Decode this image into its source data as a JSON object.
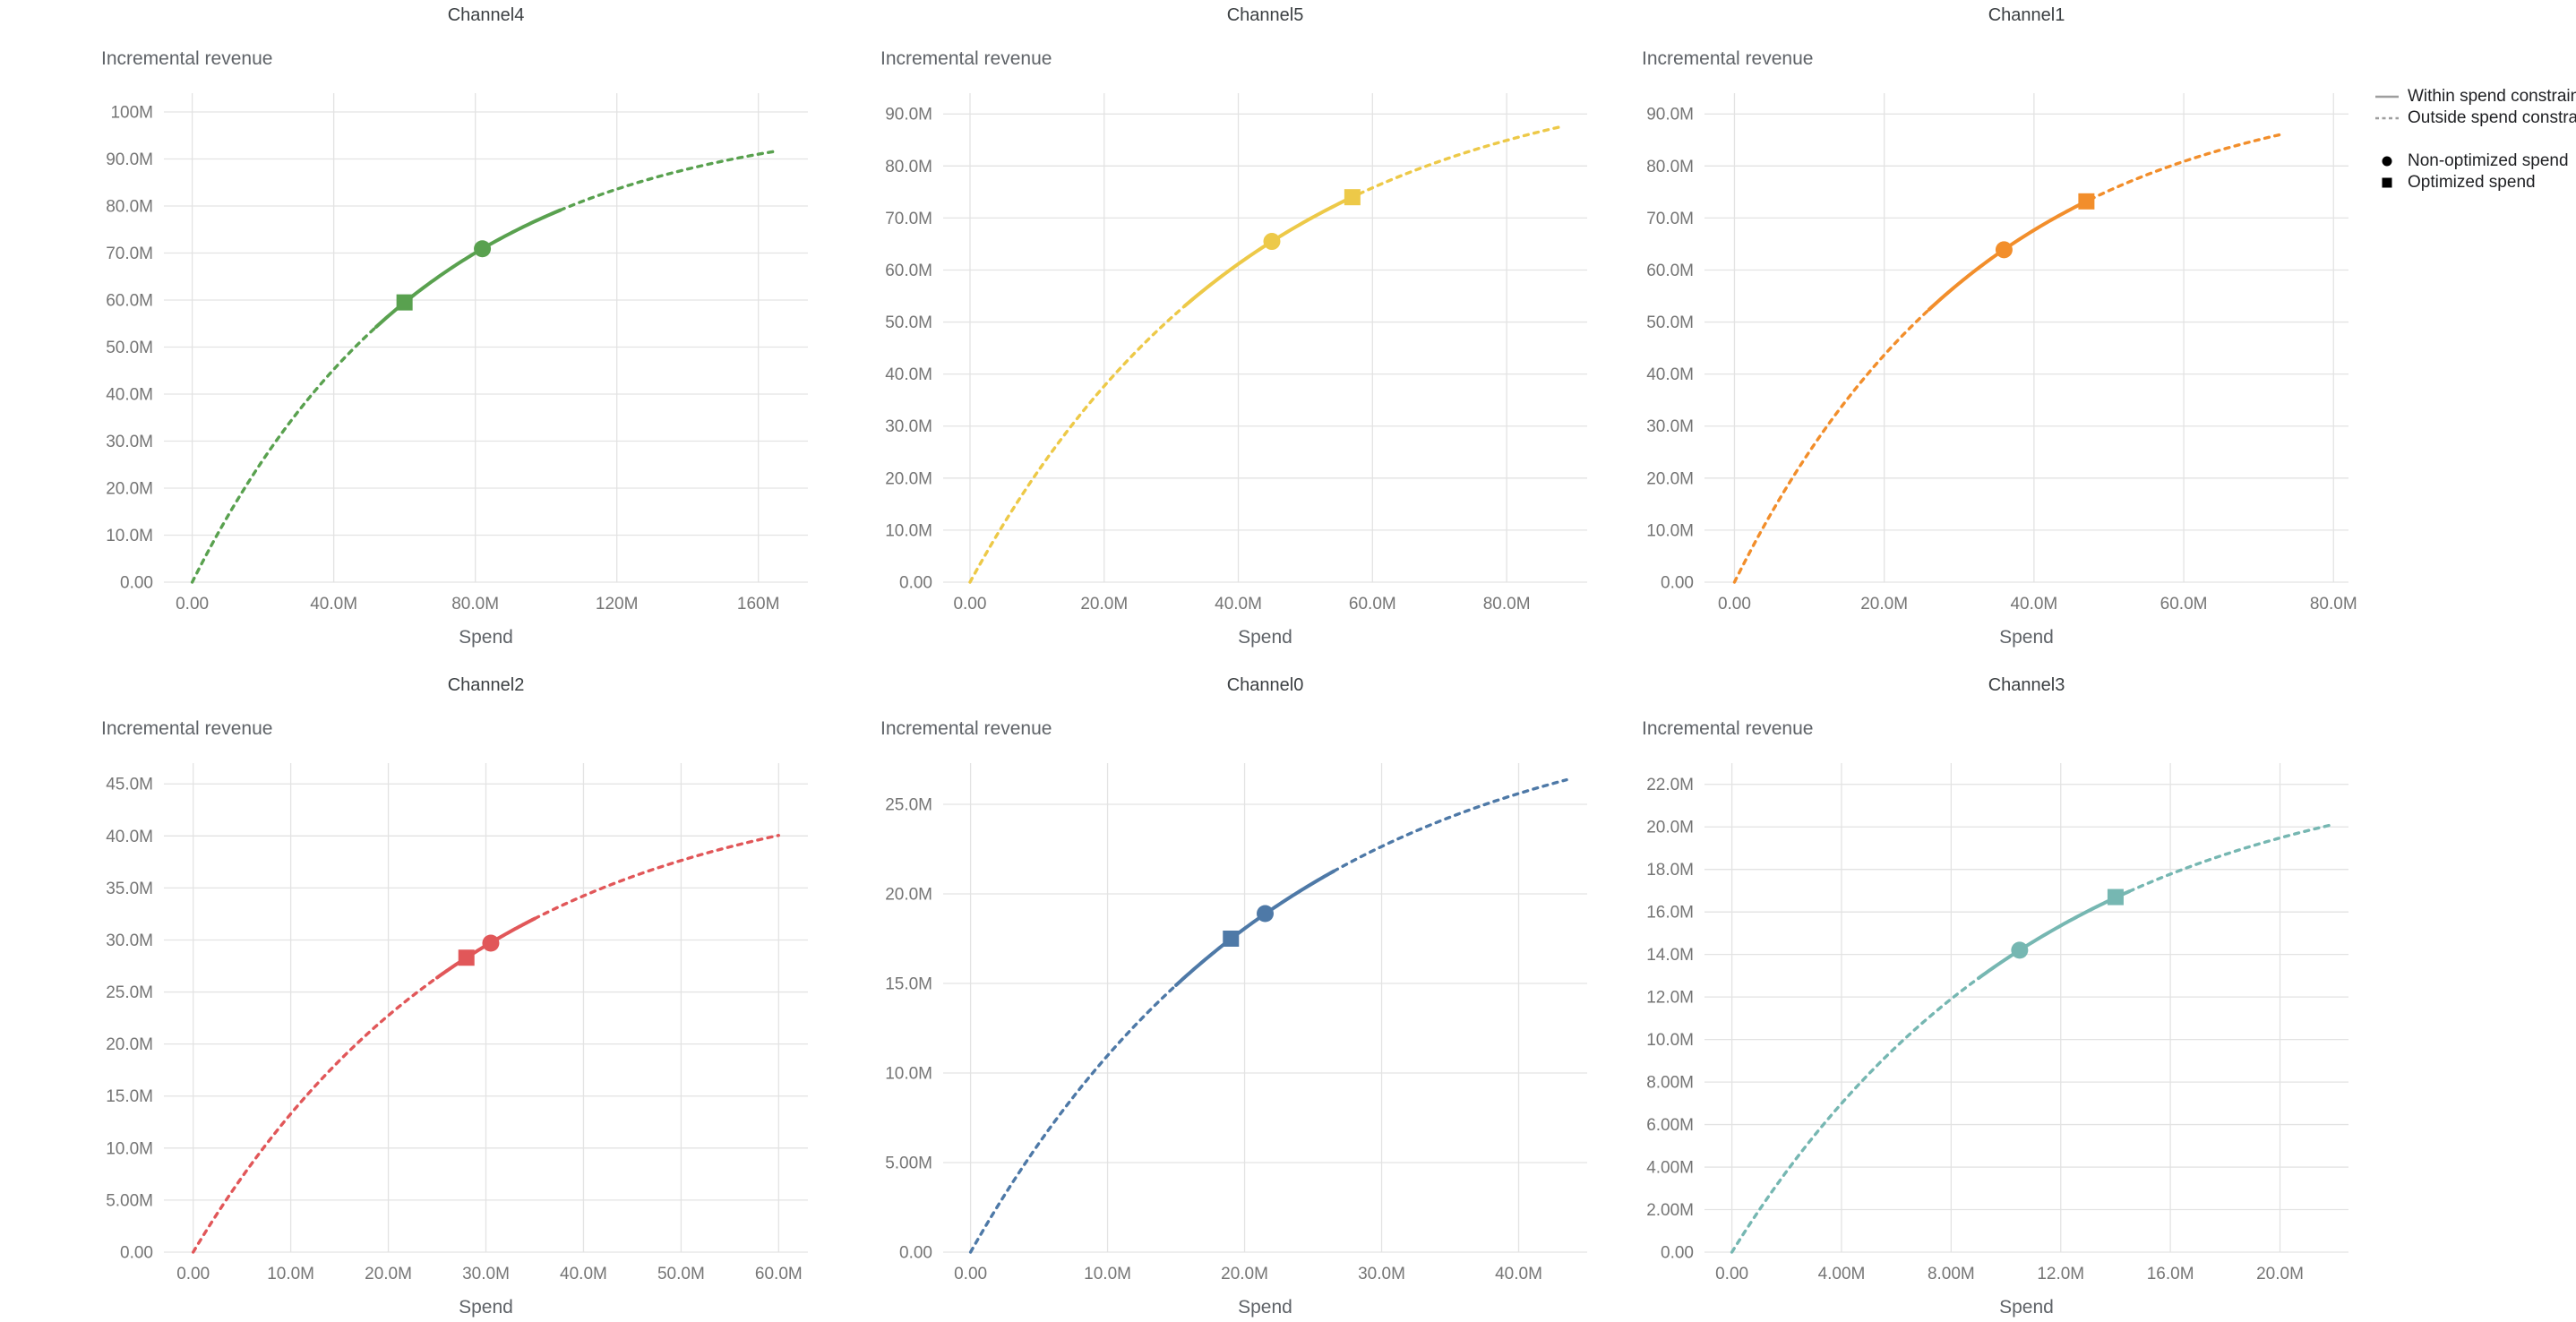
{
  "figure": {
    "layout": {
      "rows": 2,
      "cols": 3,
      "grid": true,
      "legend_position": "top-right"
    },
    "background": "#ffffff"
  },
  "legend": {
    "line_color": "#9e9e9e",
    "marker_color": "#000000",
    "items": [
      {
        "type": "line-solid",
        "label": "Within spend constraint"
      },
      {
        "type": "line-dashed",
        "label": "Outside spend constraint"
      },
      {
        "type": "marker-circle",
        "label": "Non-optimized spend"
      },
      {
        "type": "marker-square",
        "label": "Optimized spend"
      }
    ]
  },
  "chart_data": [
    {
      "type": "line",
      "title": "Channel4",
      "xlabel": "Spend",
      "ylabel": "Incremental revenue",
      "color": "#59A14F",
      "unit": "M",
      "curve": {
        "model": "y = A*(1-exp(-b*x))",
        "A": 100,
        "b": 0.01506,
        "x_end": 165
      },
      "solid_range": [
        52,
        104
      ],
      "markers": {
        "non_optimized": {
          "x": 82,
          "y": 70.9
        },
        "optimized": {
          "x": 60,
          "y": 59.5
        }
      },
      "x_domain": [
        -8,
        174
      ],
      "y_domain": [
        0,
        104
      ],
      "x_ticks": [
        {
          "v": 0,
          "label": "0.00"
        },
        {
          "v": 40,
          "label": "40.0M"
        },
        {
          "v": 80,
          "label": "80.0M"
        },
        {
          "v": 120,
          "label": "120M"
        },
        {
          "v": 160,
          "label": "160M"
        }
      ],
      "y_ticks": [
        {
          "v": 0,
          "label": "0.00"
        },
        {
          "v": 10,
          "label": "10.0M"
        },
        {
          "v": 20,
          "label": "20.0M"
        },
        {
          "v": 30,
          "label": "30.0M"
        },
        {
          "v": 40,
          "label": "40.0M"
        },
        {
          "v": 50,
          "label": "50.0M"
        },
        {
          "v": 60,
          "label": "60.0M"
        },
        {
          "v": 70,
          "label": "70.0M"
        },
        {
          "v": 80,
          "label": "80.0M"
        },
        {
          "v": 90,
          "label": "90.0M"
        },
        {
          "v": 100,
          "label": "100M"
        }
      ]
    },
    {
      "type": "line",
      "title": "Channel5",
      "xlabel": "Spend",
      "ylabel": "Incremental revenue",
      "color": "#EDC948",
      "unit": "M",
      "curve": {
        "model": "y = A*(1-exp(-b*x))",
        "A": 100,
        "b": 0.02365,
        "x_end": 88
      },
      "solid_range": [
        32,
        58
      ],
      "markers": {
        "non_optimized": {
          "x": 45,
          "y": 65.5
        },
        "optimized": {
          "x": 57,
          "y": 74.0
        }
      },
      "x_domain": [
        -4,
        92
      ],
      "y_domain": [
        0,
        94
      ],
      "x_ticks": [
        {
          "v": 0,
          "label": "0.00"
        },
        {
          "v": 20,
          "label": "20.0M"
        },
        {
          "v": 40,
          "label": "40.0M"
        },
        {
          "v": 60,
          "label": "60.0M"
        },
        {
          "v": 80,
          "label": "80.0M"
        }
      ],
      "y_ticks": [
        {
          "v": 0,
          "label": "0.00"
        },
        {
          "v": 10,
          "label": "10.0M"
        },
        {
          "v": 20,
          "label": "20.0M"
        },
        {
          "v": 30,
          "label": "30.0M"
        },
        {
          "v": 40,
          "label": "40.0M"
        },
        {
          "v": 50,
          "label": "50.0M"
        },
        {
          "v": 60,
          "label": "60.0M"
        },
        {
          "v": 70,
          "label": "70.0M"
        },
        {
          "v": 80,
          "label": "80.0M"
        },
        {
          "v": 90,
          "label": "90.0M"
        }
      ]
    },
    {
      "type": "line",
      "title": "Channel1",
      "xlabel": "Spend",
      "ylabel": "Incremental revenue",
      "color": "#F28E2B",
      "unit": "M",
      "curve": {
        "model": "y = A*(1-exp(-b*x))",
        "A": 97,
        "b": 0.0299,
        "x_end": 73
      },
      "solid_range": [
        26,
        47.5
      ],
      "markers": {
        "non_optimized": {
          "x": 36,
          "y": 63.9
        },
        "optimized": {
          "x": 47,
          "y": 73.2
        }
      },
      "x_domain": [
        -4,
        82
      ],
      "y_domain": [
        0,
        94
      ],
      "x_ticks": [
        {
          "v": 0,
          "label": "0.00"
        },
        {
          "v": 20,
          "label": "20.0M"
        },
        {
          "v": 40,
          "label": "40.0M"
        },
        {
          "v": 60,
          "label": "60.0M"
        },
        {
          "v": 80,
          "label": "80.0M"
        }
      ],
      "y_ticks": [
        {
          "v": 0,
          "label": "0.00"
        },
        {
          "v": 10,
          "label": "10.0M"
        },
        {
          "v": 20,
          "label": "20.0M"
        },
        {
          "v": 30,
          "label": "30.0M"
        },
        {
          "v": 40,
          "label": "40.0M"
        },
        {
          "v": 50,
          "label": "50.0M"
        },
        {
          "v": 60,
          "label": "60.0M"
        },
        {
          "v": 70,
          "label": "70.0M"
        },
        {
          "v": 80,
          "label": "80.0M"
        },
        {
          "v": 90,
          "label": "90.0M"
        }
      ]
    },
    {
      "type": "line",
      "title": "Channel2",
      "xlabel": "Spend",
      "ylabel": "Incremental revenue",
      "color": "#E15759",
      "unit": "M",
      "curve": {
        "model": "y = A*(1-exp(-b*x))",
        "A": 46,
        "b": 0.0341,
        "x_end": 60
      },
      "solid_range": [
        25,
        35
      ],
      "markers": {
        "non_optimized": {
          "x": 30.5,
          "y": 29.7
        },
        "optimized": {
          "x": 28,
          "y": 28.3
        }
      },
      "x_domain": [
        -3,
        63
      ],
      "y_domain": [
        0,
        47
      ],
      "x_ticks": [
        {
          "v": 0,
          "label": "0.00"
        },
        {
          "v": 10,
          "label": "10.0M"
        },
        {
          "v": 20,
          "label": "20.0M"
        },
        {
          "v": 30,
          "label": "30.0M"
        },
        {
          "v": 40,
          "label": "40.0M"
        },
        {
          "v": 50,
          "label": "50.0M"
        },
        {
          "v": 60,
          "label": "60.0M"
        }
      ],
      "y_ticks": [
        {
          "v": 0,
          "label": "0.00"
        },
        {
          "v": 5,
          "label": "5.00M"
        },
        {
          "v": 10,
          "label": "10.0M"
        },
        {
          "v": 15,
          "label": "15.0M"
        },
        {
          "v": 20,
          "label": "20.0M"
        },
        {
          "v": 25,
          "label": "25.0M"
        },
        {
          "v": 30,
          "label": "30.0M"
        },
        {
          "v": 35,
          "label": "35.0M"
        },
        {
          "v": 40,
          "label": "40.0M"
        },
        {
          "v": 45,
          "label": "45.0M"
        }
      ]
    },
    {
      "type": "line",
      "title": "Channel0",
      "xlabel": "Spend",
      "ylabel": "Incremental revenue",
      "color": "#4E79A7",
      "unit": "M",
      "curve": {
        "model": "y = A*(1-exp(-b*x))",
        "A": 31,
        "b": 0.0437,
        "x_end": 43.5
      },
      "solid_range": [
        15,
        26.5
      ],
      "markers": {
        "non_optimized": {
          "x": 21.5,
          "y": 18.9
        },
        "optimized": {
          "x": 19,
          "y": 17.5
        }
      },
      "x_domain": [
        -2,
        45
      ],
      "y_domain": [
        0,
        27.3
      ],
      "x_ticks": [
        {
          "v": 0,
          "label": "0.00"
        },
        {
          "v": 10,
          "label": "10.0M"
        },
        {
          "v": 20,
          "label": "20.0M"
        },
        {
          "v": 30,
          "label": "30.0M"
        },
        {
          "v": 40,
          "label": "40.0M"
        }
      ],
      "y_ticks": [
        {
          "v": 0,
          "label": "0.00"
        },
        {
          "v": 5,
          "label": "5.00M"
        },
        {
          "v": 10,
          "label": "10.0M"
        },
        {
          "v": 15,
          "label": "15.0M"
        },
        {
          "v": 20,
          "label": "20.0M"
        },
        {
          "v": 25,
          "label": "25.0M"
        }
      ]
    },
    {
      "type": "line",
      "title": "Channel3",
      "xlabel": "Spend",
      "ylabel": "Incremental revenue",
      "color": "#76B7B2",
      "unit": "M",
      "curve": {
        "model": "y = A*(1-exp(-b*x))",
        "A": 23.5,
        "b": 0.0883,
        "x_end": 21.8
      },
      "solid_range": [
        9,
        14.5
      ],
      "markers": {
        "non_optimized": {
          "x": 10.5,
          "y": 14.2
        },
        "optimized": {
          "x": 14,
          "y": 16.7
        }
      },
      "x_domain": [
        -1,
        22.5
      ],
      "y_domain": [
        0,
        23
      ],
      "x_ticks": [
        {
          "v": 0,
          "label": "0.00"
        },
        {
          "v": 4,
          "label": "4.00M"
        },
        {
          "v": 8,
          "label": "8.00M"
        },
        {
          "v": 12,
          "label": "12.0M"
        },
        {
          "v": 16,
          "label": "16.0M"
        },
        {
          "v": 20,
          "label": "20.0M"
        }
      ],
      "y_ticks": [
        {
          "v": 0,
          "label": "0.00"
        },
        {
          "v": 2,
          "label": "2.00M"
        },
        {
          "v": 4,
          "label": "4.00M"
        },
        {
          "v": 6,
          "label": "6.00M"
        },
        {
          "v": 8,
          "label": "8.00M"
        },
        {
          "v": 10,
          "label": "10.0M"
        },
        {
          "v": 12,
          "label": "12.0M"
        },
        {
          "v": 14,
          "label": "14.0M"
        },
        {
          "v": 16,
          "label": "16.0M"
        },
        {
          "v": 18,
          "label": "18.0M"
        },
        {
          "v": 20,
          "label": "20.0M"
        },
        {
          "v": 22,
          "label": "22.0M"
        }
      ]
    }
  ]
}
